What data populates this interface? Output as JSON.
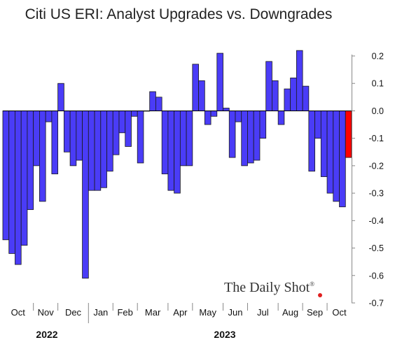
{
  "colors": {
    "bar": "#4A3CF7",
    "highlight": "#FF0000",
    "watermark_dot": "#e02020"
  },
  "watermark": {
    "text": "The Daily Shot",
    "mark": "®"
  },
  "chart_data": {
    "type": "bar",
    "title": "Citi US ERI: Analyst Upgrades vs. Downgrades",
    "ylim": [
      -0.7,
      0.25
    ],
    "yticks": [
      -0.7,
      -0.6,
      -0.5,
      -0.4,
      -0.3,
      -0.2,
      -0.1,
      0.0,
      0.1,
      0.2
    ],
    "ytick_labels": [
      "-0.7",
      "-0.6",
      "-0.5",
      "-0.4",
      "-0.3",
      "-0.2",
      "-0.1",
      "0.0",
      "0.1",
      "0.2"
    ],
    "grid": false,
    "y_axis_side": "right",
    "months": [
      "Oct",
      "Nov",
      "Dec",
      "Jan",
      "Feb",
      "Mar",
      "Apr",
      "May",
      "Jun",
      "Jul",
      "Aug",
      "Sep",
      "Oct"
    ],
    "years": [
      "2022",
      "2023"
    ],
    "series": [
      {
        "values": [
          -0.47,
          -0.52,
          -0.56,
          -0.49,
          -0.36,
          -0.2,
          -0.33,
          -0.04,
          -0.23,
          0.1,
          -0.15,
          -0.2,
          -0.18,
          -0.61,
          -0.29,
          -0.29,
          -0.28,
          -0.22,
          -0.16,
          -0.08,
          -0.13,
          -0.02,
          -0.19,
          0.0,
          0.07,
          0.05,
          -0.23,
          -0.29,
          -0.3,
          -0.2,
          -0.2,
          0.17,
          0.11,
          -0.05,
          -0.02,
          0.21,
          0.01,
          -0.17,
          -0.04,
          -0.2,
          -0.19,
          -0.18,
          -0.1,
          0.18,
          0.11,
          -0.05,
          0.08,
          0.12,
          0.22,
          0.09,
          -0.22,
          -0.1,
          -0.24,
          -0.3,
          -0.33,
          -0.35,
          -0.17
        ],
        "highlight_last": true
      }
    ]
  }
}
